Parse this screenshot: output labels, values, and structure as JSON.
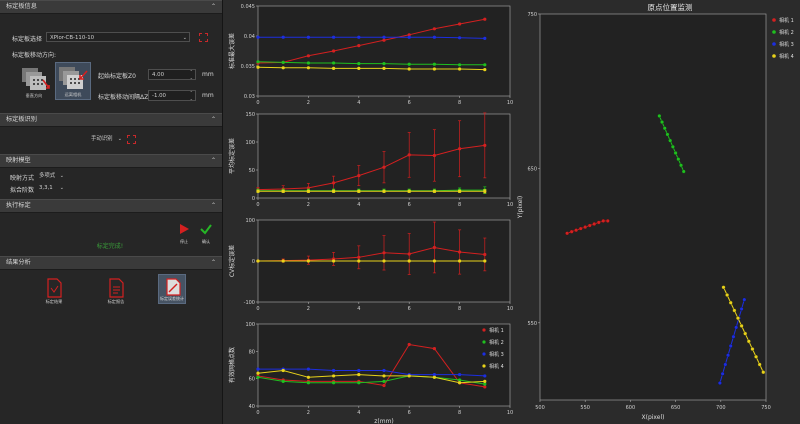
{
  "left_panel": {
    "sections": [
      {
        "title": "标定板信息"
      },
      {
        "title": "标定板识别"
      },
      {
        "title": "映射模型"
      },
      {
        "title": "执行标定"
      },
      {
        "title": "结果分析"
      }
    ],
    "board_info": {
      "select_label": "标定板选择",
      "select_value": "XPlor-CB-110-10",
      "move_dir_label": "标定板移动方向:",
      "tile_left_caption": "垂直方向",
      "tile_right_caption": "远离相机",
      "start_pos_label": "起始标定板Z0",
      "start_pos_value": "4.00",
      "start_pos_unit": "mm",
      "interval_label": "标定板移动间隔ΔZ",
      "interval_value": "-1.00",
      "interval_unit": "mm"
    },
    "recognition": {
      "mode_value": "手动识别"
    },
    "mapping": {
      "method_label": "映射方式",
      "method_value": "多项式",
      "order_label": "拟合阶数",
      "order_value": "3,3,1"
    },
    "execute": {
      "stop_label": "停止",
      "confirm_label": "确认",
      "status_text": "标定完成!"
    },
    "analysis": {
      "items": [
        {
          "caption": "标定结果"
        },
        {
          "caption": "标定报告"
        },
        {
          "caption": "标定误差统计"
        }
      ]
    }
  },
  "charts": {
    "icon_names": [
      "chevron-up-icon",
      "target-icon",
      "play-icon",
      "check-icon",
      "file-icon"
    ],
    "colors": {
      "red": "#d42020",
      "green": "#1fbf1f",
      "blue": "#1c2ee0",
      "yellow": "#e8d21a"
    }
  },
  "chart_data": [
    {
      "type": "line",
      "ylabel": "标准最大误差",
      "xlim": [
        0,
        10
      ],
      "ylim": [
        0.03,
        0.045
      ],
      "yticks": [
        "0.03",
        "0.035",
        "0.04",
        "0.045"
      ],
      "xticks": [
        "0",
        "2",
        "4",
        "6",
        "8",
        "10"
      ],
      "x": [
        0,
        1,
        2,
        3,
        4,
        5,
        6,
        7,
        8,
        9
      ],
      "series": [
        {
          "color": "red",
          "values": [
            0.0355,
            0.0356,
            0.0367,
            0.0375,
            0.0384,
            0.0393,
            0.0402,
            0.0412,
            0.042,
            0.0428
          ]
        },
        {
          "color": "blue",
          "values": [
            0.0398,
            0.0398,
            0.0398,
            0.0398,
            0.0398,
            0.0398,
            0.0398,
            0.0398,
            0.0397,
            0.0396
          ]
        },
        {
          "color": "green",
          "values": [
            0.0357,
            0.0356,
            0.0355,
            0.0355,
            0.0354,
            0.0354,
            0.0353,
            0.0353,
            0.0352,
            0.0352
          ]
        },
        {
          "color": "yellow",
          "values": [
            0.0348,
            0.0347,
            0.0347,
            0.0346,
            0.0346,
            0.0346,
            0.0345,
            0.0345,
            0.0345,
            0.0344
          ]
        }
      ]
    },
    {
      "type": "line",
      "ylabel": "平均标定误差",
      "xlim": [
        0,
        10
      ],
      "ylim": [
        0,
        150
      ],
      "yticks": [
        "0",
        "50",
        "100",
        "150"
      ],
      "xticks": [
        "0",
        "2",
        "4",
        "6",
        "8",
        "10"
      ],
      "x": [
        0,
        1,
        2,
        3,
        4,
        5,
        6,
        7,
        8,
        9
      ],
      "series": [
        {
          "color": "red",
          "values": [
            15,
            16,
            18,
            27,
            40,
            55,
            77,
            76,
            88,
            94
          ],
          "err": [
            4,
            6,
            8,
            12,
            18,
            28,
            40,
            46,
            50,
            58
          ]
        },
        {
          "color": "green",
          "values": [
            13,
            13,
            13,
            13,
            13,
            13,
            13,
            13,
            14,
            14
          ],
          "err": [
            3,
            3,
            3,
            3,
            3,
            3,
            3,
            3,
            4,
            6
          ]
        },
        {
          "color": "yellow",
          "values": [
            12,
            12,
            12,
            12,
            12,
            12,
            12,
            12,
            12,
            12
          ],
          "err": [
            2,
            2,
            2,
            2,
            2,
            2,
            2,
            2,
            2,
            3
          ]
        }
      ]
    },
    {
      "type": "line",
      "ylabel": "CV标定误差",
      "xlim": [
        0,
        10
      ],
      "ylim": [
        -100,
        100
      ],
      "yticks": [
        "-100",
        "0",
        "100"
      ],
      "xticks": [
        "0",
        "2",
        "4",
        "6",
        "8",
        "10"
      ],
      "x": [
        0,
        1,
        2,
        3,
        4,
        5,
        6,
        7,
        8,
        9
      ],
      "series": [
        {
          "color": "red",
          "values": [
            0,
            1,
            2,
            5,
            9,
            20,
            17,
            33,
            22,
            16
          ],
          "err": [
            0,
            4,
            10,
            16,
            28,
            42,
            50,
            62,
            54,
            40
          ]
        },
        {
          "color": "yellow",
          "values": [
            0,
            0,
            0,
            0,
            0,
            0,
            0,
            0,
            0,
            0
          ],
          "err": [
            0,
            0,
            0,
            0,
            0,
            0,
            0,
            0,
            0,
            0
          ]
        }
      ]
    },
    {
      "type": "line",
      "ylabel": "有效网格点数",
      "xlabel": "z(mm)",
      "xlim": [
        0,
        10
      ],
      "ylim": [
        40,
        100
      ],
      "yticks": [
        "40",
        "60",
        "80",
        "100"
      ],
      "xticks": [
        "0",
        "2",
        "4",
        "6",
        "8",
        "10"
      ],
      "x": [
        0,
        1,
        2,
        3,
        4,
        5,
        6,
        7,
        8,
        9
      ],
      "legend": [
        "相机 1",
        "相机 2",
        "相机 3",
        "相机 4"
      ],
      "series": [
        {
          "name": "相机 1",
          "color": "red",
          "values": [
            62,
            59,
            58,
            58,
            58,
            55,
            85,
            82,
            57,
            54
          ]
        },
        {
          "name": "相机 2",
          "color": "green",
          "values": [
            61,
            58,
            57,
            57,
            57,
            58,
            62,
            61,
            59,
            56
          ]
        },
        {
          "name": "相机 3",
          "color": "blue",
          "values": [
            67,
            67,
            67,
            66,
            66,
            66,
            63,
            63,
            63,
            62
          ]
        },
        {
          "name": "相机 4",
          "color": "yellow",
          "values": [
            64,
            66,
            61,
            62,
            63,
            62,
            62,
            61,
            57,
            58
          ]
        }
      ]
    },
    {
      "type": "scatter",
      "title": "原点位置监测",
      "xlabel": "X(pixel)",
      "ylabel": "Y(pixel)",
      "xlim": [
        500,
        750
      ],
      "ylim": [
        500,
        750
      ],
      "xticks": [
        "500",
        "550",
        "600",
        "650",
        "700",
        "750"
      ],
      "yticks": [
        "550",
        "650",
        "750"
      ],
      "legend": [
        "相机 1",
        "相机 2",
        "相机 3",
        "相机 4"
      ],
      "series": [
        {
          "name": "相机 1",
          "color": "red",
          "x": [
            530,
            535,
            540,
            545,
            550,
            555,
            560,
            565,
            570,
            575
          ],
          "y": [
            608,
            609,
            610,
            611,
            612,
            613,
            614,
            615,
            616,
            616
          ]
        },
        {
          "name": "相机 2",
          "color": "green",
          "x": [
            632,
            635,
            638,
            641,
            644,
            647,
            650,
            653,
            656,
            659
          ],
          "y": [
            684,
            680,
            676,
            672,
            668,
            664,
            660,
            656,
            652,
            648
          ]
        },
        {
          "name": "相机 3",
          "color": "blue",
          "x": [
            699,
            702,
            705,
            708,
            711,
            714,
            717,
            720,
            723,
            726
          ],
          "y": [
            511,
            517,
            523,
            529,
            535,
            541,
            547,
            553,
            559,
            565
          ]
        },
        {
          "name": "相机 4",
          "color": "yellow",
          "x": [
            703,
            707,
            711,
            715,
            719,
            723,
            727,
            731,
            735,
            739,
            743,
            747
          ],
          "y": [
            573,
            568,
            563,
            558,
            553,
            548,
            543,
            538,
            533,
            528,
            523,
            518
          ]
        }
      ]
    }
  ]
}
